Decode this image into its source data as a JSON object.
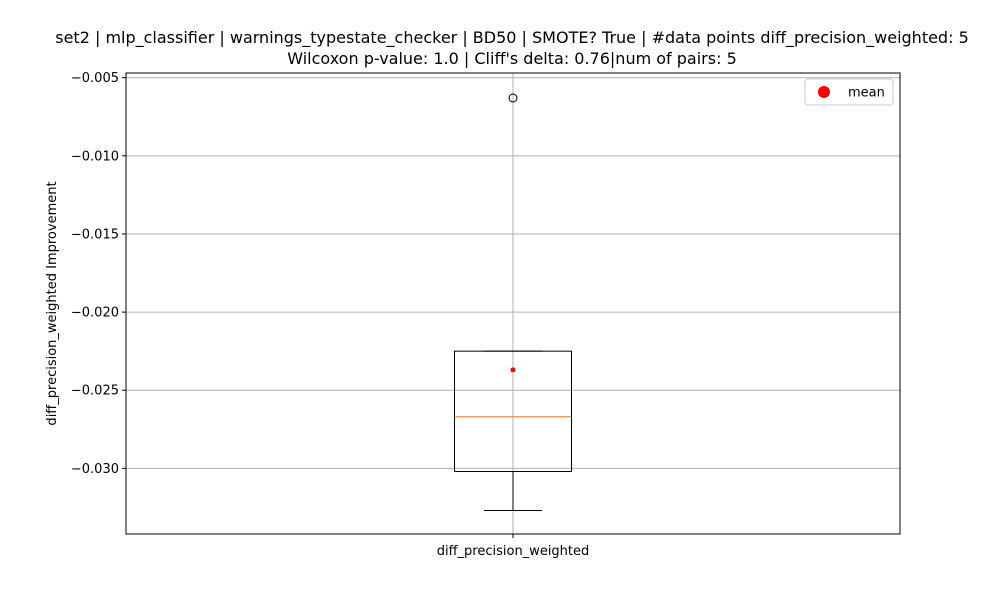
{
  "chart_data": {
    "type": "boxplot",
    "title_line1": "set2 | mlp_classifier | warnings_typestate_checker | BD50 | SMOTE? True | #data points diff_precision_weighted: 5",
    "title_line2": "Wilcoxon p-value: 1.0 | Cliff's delta: 0.76|num of pairs: 5",
    "xlabel": "",
    "ylabel": "diff_precision_weighted Improvement",
    "categories": [
      "diff_precision_weighted"
    ],
    "ylim": [
      -0.0342,
      -0.0047
    ],
    "yticks": [
      -0.005,
      -0.01,
      -0.015,
      -0.02,
      -0.025,
      -0.03
    ],
    "ytick_labels": [
      "−0.005",
      "−0.010",
      "−0.015",
      "−0.020",
      "−0.025",
      "−0.030"
    ],
    "grid": true,
    "box": {
      "q1": -0.0302,
      "median": -0.0267,
      "q3": -0.0225,
      "whisker_low": -0.0327,
      "whisker_high": -0.0225,
      "mean": -0.0237,
      "outliers": [
        -0.0063
      ]
    },
    "legend": {
      "position": "top-right",
      "entries": [
        {
          "label": "mean",
          "color": "#ff0000"
        }
      ]
    },
    "colors": {
      "median": "#ff7f0e",
      "mean": "#ff0000",
      "box": "#000000",
      "grid": "#b0b0b0"
    }
  }
}
